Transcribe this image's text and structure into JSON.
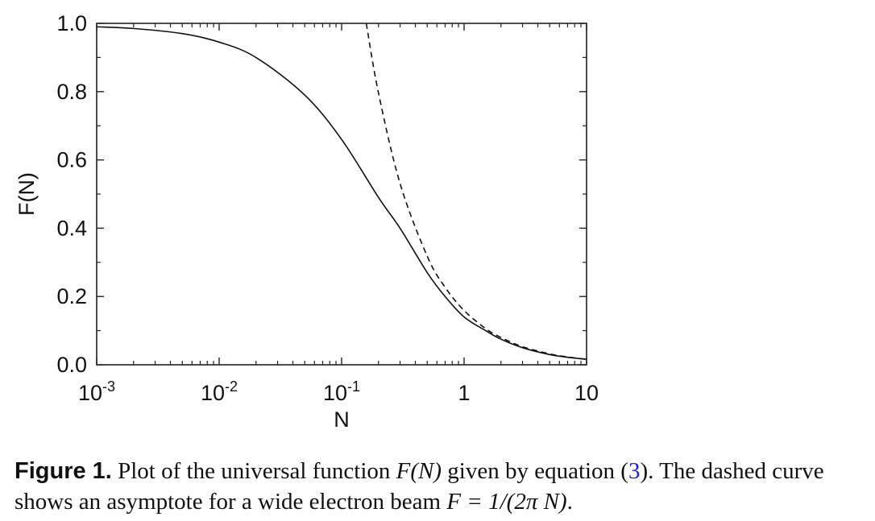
{
  "chart_data": {
    "type": "line",
    "xlabel": "N",
    "ylabel": "F(N)",
    "xscale": "log",
    "xlim": [
      0.001,
      10
    ],
    "ylim": [
      0,
      1
    ],
    "x_ticks": [
      {
        "value": 0.001,
        "base": "10",
        "exp": "-3"
      },
      {
        "value": 0.01,
        "base": "10",
        "exp": "-2"
      },
      {
        "value": 0.1,
        "base": "10",
        "exp": "-1"
      },
      {
        "value": 1,
        "base": "1",
        "exp": ""
      },
      {
        "value": 10,
        "base": "10",
        "exp": ""
      }
    ],
    "y_ticks": [
      {
        "value": 0.0,
        "label": "0.0"
      },
      {
        "value": 0.2,
        "label": "0.2"
      },
      {
        "value": 0.4,
        "label": "0.4"
      },
      {
        "value": 0.6,
        "label": "0.6"
      },
      {
        "value": 0.8,
        "label": "0.8"
      },
      {
        "value": 1.0,
        "label": "1.0"
      }
    ],
    "grid": false,
    "series": [
      {
        "style": "solid",
        "x": [
          0.001,
          0.002,
          0.005,
          0.01,
          0.02,
          0.05,
          0.1,
          0.2,
          0.3,
          0.5,
          0.7,
          1,
          1.5,
          2,
          3,
          5,
          7,
          10
        ],
        "y": [
          0.99,
          0.985,
          0.97,
          0.945,
          0.9,
          0.79,
          0.66,
          0.49,
          0.4,
          0.27,
          0.2,
          0.14,
          0.1,
          0.075,
          0.05,
          0.03,
          0.022,
          0.016
        ]
      },
      {
        "style": "dashed",
        "x": [
          0.159,
          0.2,
          0.3,
          0.5,
          0.7,
          1,
          1.5,
          2,
          3,
          5,
          7,
          10
        ],
        "y": [
          1.0,
          0.796,
          0.531,
          0.318,
          0.227,
          0.159,
          0.106,
          0.08,
          0.053,
          0.032,
          0.023,
          0.016
        ]
      }
    ]
  },
  "caption": {
    "label": "Figure 1.",
    "text_1": " Plot of the universal function ",
    "math_1": "F(N)",
    "text_2": " given by equation (",
    "ref": "3",
    "text_3": "). The dashed curve shows an asymptote for a wide electron beam ",
    "math_2": "F = 1/(2π N)",
    "text_4": "."
  }
}
